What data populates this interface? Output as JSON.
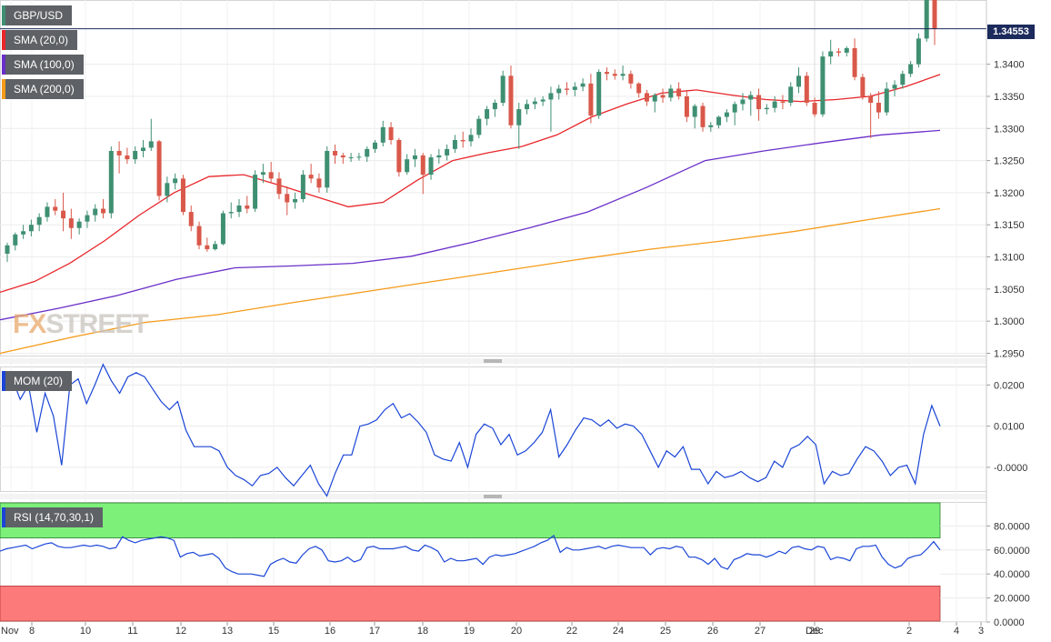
{
  "chart_data": [
    {
      "type": "candlestick",
      "symbol": "GBP/USD",
      "last_price": "1.34553",
      "ylim": [
        1.2945,
        1.35
      ],
      "y_ticks": [
        "1.2950",
        "1.3000",
        "1.3050",
        "1.3100",
        "1.3150",
        "1.3200",
        "1.3250",
        "1.3300",
        "1.3350",
        "1.3400"
      ],
      "x_ticks": [
        "Nov",
        "8",
        "10",
        "11",
        "12",
        "13",
        "15",
        "16",
        "17",
        "18",
        "19",
        "20",
        "22",
        "24",
        "25",
        "26",
        "27",
        "29",
        "Dec",
        "2",
        "3",
        "4"
      ],
      "indicators": [
        "SMA (20,0)",
        "SMA (100,0)",
        "SMA (200,0)"
      ],
      "colors": {
        "up": "#3f8f72",
        "down": "#d9584a",
        "sma20": "#e8262a",
        "sma100": "#6a2fc9",
        "sma200": "#f59b19",
        "last_price_line": "#1c2a5c"
      },
      "candles": [
        [
          1.3105,
          1.3122,
          1.3092,
          1.3118
        ],
        [
          1.3118,
          1.3138,
          1.311,
          1.3135
        ],
        [
          1.3135,
          1.315,
          1.3128,
          1.314
        ],
        [
          1.314,
          1.3158,
          1.3132,
          1.315
        ],
        [
          1.315,
          1.3168,
          1.314,
          1.3162
        ],
        [
          1.3162,
          1.3185,
          1.3155,
          1.3178
        ],
        [
          1.3178,
          1.319,
          1.3165,
          1.3172
        ],
        [
          1.3172,
          1.32,
          1.314,
          1.316
        ],
        [
          1.316,
          1.3175,
          1.3128,
          1.3145
        ],
        [
          1.3145,
          1.316,
          1.3135,
          1.3155
        ],
        [
          1.3155,
          1.3172,
          1.3145,
          1.3165
        ],
        [
          1.3165,
          1.3182,
          1.3155,
          1.3175
        ],
        [
          1.3175,
          1.319,
          1.316,
          1.3168
        ],
        [
          1.3168,
          1.3272,
          1.316,
          1.3265
        ],
        [
          1.3265,
          1.328,
          1.323,
          1.3258
        ],
        [
          1.3258,
          1.327,
          1.3245,
          1.3252
        ],
        [
          1.3252,
          1.3272,
          1.3245,
          1.3265
        ],
        [
          1.3265,
          1.3282,
          1.3255,
          1.327
        ],
        [
          1.327,
          1.3315,
          1.3265,
          1.328
        ],
        [
          1.328,
          1.3282,
          1.3188,
          1.3195
        ],
        [
          1.3195,
          1.3225,
          1.3185,
          1.3215
        ],
        [
          1.3215,
          1.323,
          1.3205,
          1.3222
        ],
        [
          1.3222,
          1.3228,
          1.3165,
          1.317
        ],
        [
          1.317,
          1.318,
          1.314,
          1.3148
        ],
        [
          1.3148,
          1.3155,
          1.3112,
          1.3118
        ],
        [
          1.3118,
          1.313,
          1.3108,
          1.3112
        ],
        [
          1.3112,
          1.3125,
          1.311,
          1.312
        ],
        [
          1.312,
          1.3172,
          1.3118,
          1.3168
        ],
        [
          1.3168,
          1.3185,
          1.316,
          1.317
        ],
        [
          1.317,
          1.319,
          1.3162,
          1.318
        ],
        [
          1.318,
          1.3195,
          1.3168,
          1.3175
        ],
        [
          1.3175,
          1.3235,
          1.317,
          1.3228
        ],
        [
          1.3228,
          1.3245,
          1.3215,
          1.3232
        ],
        [
          1.3232,
          1.3248,
          1.3215,
          1.3222
        ],
        [
          1.3222,
          1.3232,
          1.319,
          1.3198
        ],
        [
          1.3198,
          1.321,
          1.3165,
          1.3185
        ],
        [
          1.3185,
          1.32,
          1.3175,
          1.319
        ],
        [
          1.319,
          1.3235,
          1.3185,
          1.3228
        ],
        [
          1.3228,
          1.3245,
          1.3215,
          1.3222
        ],
        [
          1.3222,
          1.323,
          1.32,
          1.3208
        ],
        [
          1.3208,
          1.3272,
          1.32,
          1.3265
        ],
        [
          1.3265,
          1.3275,
          1.3245,
          1.3258
        ],
        [
          1.3258,
          1.3262,
          1.3245,
          1.3255
        ],
        [
          1.3255,
          1.3262,
          1.3248,
          1.3255
        ],
        [
          1.3255,
          1.3262,
          1.325,
          1.3256
        ],
        [
          1.3256,
          1.3272,
          1.3248,
          1.3268
        ],
        [
          1.3268,
          1.3282,
          1.3262,
          1.3278
        ],
        [
          1.3278,
          1.3312,
          1.3272,
          1.3302
        ],
        [
          1.3302,
          1.331,
          1.3275,
          1.3282
        ],
        [
          1.3282,
          1.3285,
          1.3225,
          1.3232
        ],
        [
          1.3232,
          1.326,
          1.3228,
          1.3252
        ],
        [
          1.3252,
          1.3268,
          1.324,
          1.3258
        ],
        [
          1.3258,
          1.3262,
          1.3198,
          1.3228
        ],
        [
          1.3228,
          1.326,
          1.322,
          1.3255
        ],
        [
          1.3255,
          1.3268,
          1.3245,
          1.3258
        ],
        [
          1.3258,
          1.3275,
          1.325,
          1.3268
        ],
        [
          1.3268,
          1.329,
          1.3262,
          1.3282
        ],
        [
          1.3282,
          1.3295,
          1.327,
          1.328
        ],
        [
          1.328,
          1.33,
          1.3272,
          1.329
        ],
        [
          1.329,
          1.332,
          1.3285,
          1.3315
        ],
        [
          1.3315,
          1.3335,
          1.3305,
          1.333
        ],
        [
          1.333,
          1.3345,
          1.3318,
          1.334
        ],
        [
          1.334,
          1.339,
          1.3335,
          1.3382
        ],
        [
          1.3382,
          1.3398,
          1.33,
          1.3305
        ],
        [
          1.3305,
          1.334,
          1.3268,
          1.333
        ],
        [
          1.333,
          1.3345,
          1.3322,
          1.3338
        ],
        [
          1.3338,
          1.3348,
          1.333,
          1.3342
        ],
        [
          1.3342,
          1.335,
          1.3335,
          1.3345
        ],
        [
          1.3345,
          1.3365,
          1.3295,
          1.3355
        ],
        [
          1.3355,
          1.3368,
          1.3345,
          1.3362
        ],
        [
          1.3362,
          1.3372,
          1.3352,
          1.336
        ],
        [
          1.336,
          1.3372,
          1.335,
          1.3365
        ],
        [
          1.3365,
          1.3378,
          1.3358,
          1.337
        ],
        [
          1.337,
          1.3385,
          1.3308,
          1.332
        ],
        [
          1.332,
          1.3392,
          1.3315,
          1.3388
        ],
        [
          1.3388,
          1.3395,
          1.3375,
          1.3385
        ],
        [
          1.3385,
          1.3392,
          1.3376,
          1.3382
        ],
        [
          1.3382,
          1.3398,
          1.3375,
          1.3385
        ],
        [
          1.3385,
          1.339,
          1.3362,
          1.337
        ],
        [
          1.337,
          1.3372,
          1.3348,
          1.3355
        ],
        [
          1.3355,
          1.336,
          1.3335,
          1.3342
        ],
        [
          1.3342,
          1.3355,
          1.3325,
          1.3352
        ],
        [
          1.3352,
          1.3362,
          1.334,
          1.3348
        ],
        [
          1.3348,
          1.3368,
          1.3342,
          1.3362
        ],
        [
          1.3362,
          1.3372,
          1.3345,
          1.335
        ],
        [
          1.335,
          1.336,
          1.331,
          1.3318
        ],
        [
          1.3318,
          1.3338,
          1.33,
          1.3335
        ],
        [
          1.3335,
          1.334,
          1.3295,
          1.3302
        ],
        [
          1.3302,
          1.331,
          1.3295,
          1.3305
        ],
        [
          1.3305,
          1.332,
          1.33,
          1.3318
        ],
        [
          1.3318,
          1.333,
          1.331,
          1.3325
        ],
        [
          1.3325,
          1.3342,
          1.3305,
          1.3338
        ],
        [
          1.3338,
          1.3355,
          1.3328,
          1.3345
        ],
        [
          1.3345,
          1.3358,
          1.332,
          1.3352
        ],
        [
          1.3352,
          1.3362,
          1.3312,
          1.333
        ],
        [
          1.333,
          1.3338,
          1.3322,
          1.3332
        ],
        [
          1.3332,
          1.335,
          1.3325,
          1.3342
        ],
        [
          1.3342,
          1.3352,
          1.333,
          1.334
        ],
        [
          1.334,
          1.3372,
          1.3335,
          1.3365
        ],
        [
          1.3365,
          1.3395,
          1.3355,
          1.3382
        ],
        [
          1.3382,
          1.3388,
          1.3335,
          1.334
        ],
        [
          1.334,
          1.3348,
          1.3318,
          1.3322
        ],
        [
          1.3322,
          1.342,
          1.3318,
          1.3412
        ],
        [
          1.3412,
          1.3438,
          1.34,
          1.342
        ],
        [
          1.342,
          1.3425,
          1.3412,
          1.3418
        ],
        [
          1.3418,
          1.3428,
          1.3412,
          1.3425
        ],
        [
          1.3425,
          1.344,
          1.3375,
          1.338
        ],
        [
          1.338,
          1.3385,
          1.3345,
          1.335
        ],
        [
          1.335,
          1.3355,
          1.3285,
          1.334
        ],
        [
          1.334,
          1.3358,
          1.3315,
          1.3325
        ],
        [
          1.3325,
          1.3372,
          1.332,
          1.3362
        ],
        [
          1.3362,
          1.3375,
          1.335,
          1.3368
        ],
        [
          1.3368,
          1.339,
          1.3362,
          1.3385
        ],
        [
          1.3385,
          1.3405,
          1.338,
          1.34
        ],
        [
          1.34,
          1.3448,
          1.3395,
          1.344
        ],
        [
          1.344,
          1.35,
          1.3435,
          1.35
        ],
        [
          1.35,
          1.35,
          1.343,
          1.34553
        ]
      ],
      "sma20": [
        1.3045,
        1.3062,
        1.309,
        1.3125,
        1.3165,
        1.32,
        1.3225,
        1.3228,
        1.3212,
        1.3195,
        1.3178,
        1.3185,
        1.322,
        1.325,
        1.3262,
        1.3272,
        1.329,
        1.3318,
        1.3338,
        1.3355,
        1.336,
        1.3352,
        1.3345,
        1.3342,
        1.3345,
        1.335,
        1.3365,
        1.3384
      ],
      "sma100": [
        1.3002,
        1.302,
        1.304,
        1.3065,
        1.3083,
        1.3086,
        1.309,
        1.3101,
        1.3122,
        1.3145,
        1.317,
        1.3208,
        1.325,
        1.3265,
        1.3278,
        1.329,
        1.3297
      ],
      "sma200": [
        1.295,
        1.2975,
        1.2998,
        1.301,
        1.3028,
        1.3045,
        1.3062,
        1.3079,
        1.3096,
        1.3112,
        1.3125,
        1.314,
        1.3158,
        1.3175
      ]
    },
    {
      "type": "line",
      "title": "MOM (20)",
      "ylim": [
        -0.006,
        0.0245
      ],
      "y_ticks": [
        "0.0200",
        "0.0100",
        "-0.0000"
      ],
      "color": "#1a45d6",
      "series": [
        {
          "values": [
            0.021,
            0.0218,
            0.0165,
            0.02,
            0.0085,
            0.018,
            0.0125,
            0.0005,
            0.02,
            0.0215,
            0.0155,
            0.02,
            0.025,
            0.021,
            0.018,
            0.022,
            0.023,
            0.022,
            0.019,
            0.016,
            0.014,
            0.016,
            0.009,
            0.005,
            0.005,
            0.005,
            0.004,
            0.0,
            -0.002,
            -0.003,
            -0.0045,
            -0.002,
            -0.0015,
            0.0,
            -0.0025,
            -0.0045,
            -0.002,
            0.0005,
            -0.004,
            -0.007,
            -0.0015,
            0.003,
            0.003,
            0.01,
            0.0105,
            0.0115,
            0.014,
            0.0155,
            0.012,
            0.013,
            0.011,
            0.0085,
            0.003,
            0.002,
            0.0015,
            0.006,
            0.0,
            0.008,
            0.0105,
            0.0095,
            0.0055,
            0.008,
            0.003,
            0.004,
            0.006,
            0.0085,
            0.014,
            0.0025,
            0.0055,
            0.009,
            0.012,
            0.0115,
            0.01,
            0.0115,
            0.0095,
            0.0105,
            0.01,
            0.008,
            0.004,
            0.0,
            0.004,
            0.0025,
            0.005,
            -0.0005,
            -0.0005,
            -0.004,
            -0.001,
            -0.0025,
            -0.002,
            -0.001,
            -0.0025,
            -0.0035,
            -0.0025,
            0.0015,
            0.0,
            0.0045,
            0.0055,
            0.0075,
            0.0055,
            -0.004,
            -0.001,
            -0.002,
            -0.0015,
            0.002,
            0.005,
            0.004,
            0.0015,
            -0.002,
            0.0,
            0.0005,
            -0.004,
            0.008,
            0.015,
            0.01
          ]
        }
      ]
    },
    {
      "type": "line",
      "title": "RSI (14,70,30,1)",
      "ylim": [
        0,
        100
      ],
      "y_ticks": [
        "80.0000",
        "60.0000",
        "40.0000",
        "20.0000",
        "0.0000"
      ],
      "overbought": 70,
      "oversold": 30,
      "colors": {
        "line": "#1a45d6",
        "overbought_zone": "#7df07a",
        "oversold_zone": "#fd7a7a"
      },
      "series": [
        {
          "values": [
            59,
            61,
            62,
            63,
            64,
            61,
            63,
            65,
            66,
            63,
            62,
            62,
            63,
            64,
            63,
            64,
            63,
            61,
            62,
            71,
            68,
            66,
            68,
            69,
            70,
            71,
            70,
            68,
            54,
            57,
            58,
            55,
            56,
            57,
            53,
            45,
            42,
            40,
            40,
            40,
            39,
            38,
            48,
            51,
            53,
            50,
            49,
            56,
            61,
            63,
            60,
            51,
            50,
            51,
            54,
            50,
            52,
            62,
            63,
            61,
            61,
            61,
            62,
            63,
            60,
            59,
            64,
            62,
            59,
            50,
            53,
            51,
            51,
            52,
            53,
            48,
            54,
            56,
            55,
            56,
            57,
            59,
            61,
            63,
            66,
            68,
            72,
            58,
            62,
            60,
            60,
            61,
            62,
            63,
            61,
            63,
            64,
            63,
            62,
            62,
            62,
            56,
            61,
            62,
            61,
            63,
            62,
            54,
            54,
            52,
            48,
            53,
            46,
            44,
            52,
            54,
            57,
            56,
            56,
            54,
            56,
            59,
            57,
            62,
            63,
            61,
            60,
            63,
            62,
            52,
            54,
            53,
            51,
            61,
            63,
            63,
            64,
            54,
            48,
            45,
            47,
            53,
            55,
            56,
            61,
            67,
            60
          ]
        }
      ]
    }
  ]
}
